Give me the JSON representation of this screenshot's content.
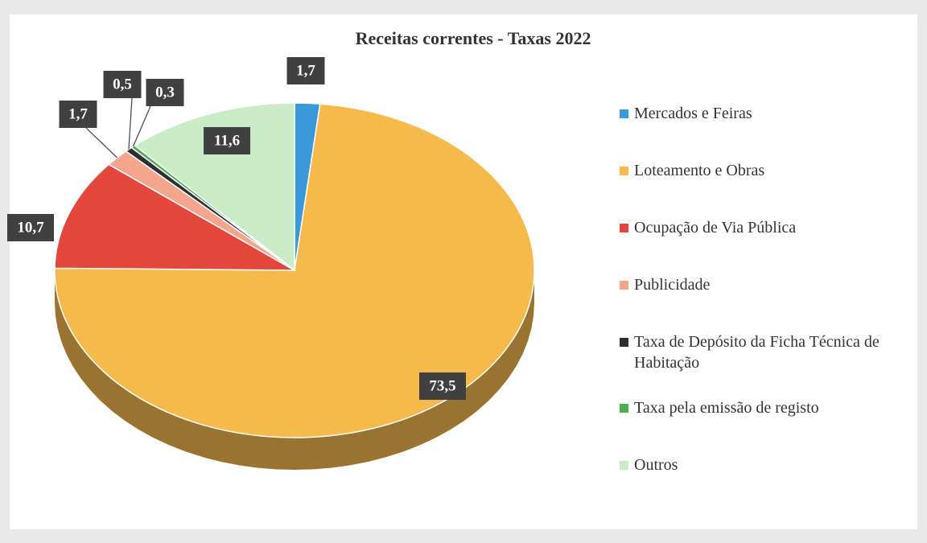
{
  "chart_data": {
    "type": "pie",
    "title": "Receitas correntes - Taxas 2022",
    "categories": [
      "Mercados e Feiras",
      "Loteamento e Obras",
      "Ocupação de Via Pública",
      "Publicidade",
      "Taxa de Depósito da Ficha Técnica de Habitação",
      "Taxa pela emissão de registo",
      "Outros"
    ],
    "values": [
      1.7,
      73.5,
      10.7,
      1.7,
      0.5,
      0.3,
      11.6
    ],
    "value_labels": [
      "1,7",
      "73,5",
      "10,7",
      "1,7",
      "0,5",
      "0,3",
      "11,6"
    ],
    "colors": [
      "#3a9ad9",
      "#f6b94c",
      "#e2463c",
      "#f4a58c",
      "#2f2f33",
      "#4caf50",
      "#c9ecc6"
    ],
    "legend": "right"
  }
}
